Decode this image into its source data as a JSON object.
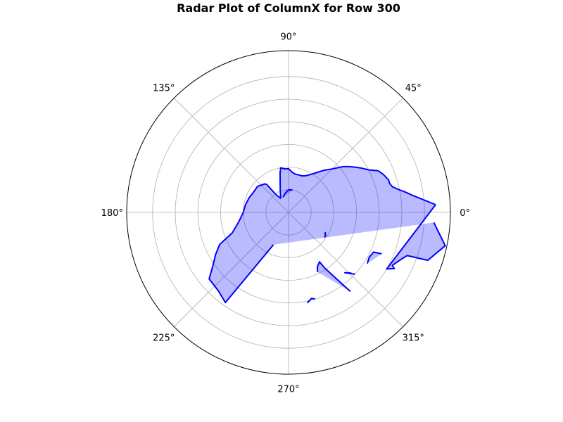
{
  "chart_data": {
    "type": "radar",
    "title": "Radar Plot of ColumnX for Row 300",
    "angle_ticks": [
      "0°",
      "45°",
      "90°",
      "135°",
      "180°",
      "225°",
      "270°",
      "315°"
    ],
    "angle_tick_degrees": [
      0,
      45,
      90,
      135,
      180,
      225,
      270,
      315
    ],
    "r_max": 1.0,
    "r_gridlines": [
      0.14,
      0.28,
      0.42,
      0.56,
      0.7,
      0.84
    ],
    "grid": true,
    "colors": {
      "line": "#0000ff",
      "fill": "#0000ff",
      "fill_opacity": 0.27,
      "grid": "#b0b0b0"
    },
    "segments": [
      {
        "filled": true,
        "points": [
          [
            3.0,
            0.91
          ],
          [
            8.0,
            0.77
          ],
          [
            10.0,
            0.73
          ],
          [
            12.0,
            0.69
          ],
          [
            14.0,
            0.66
          ],
          [
            16.0,
            0.65
          ],
          [
            18.0,
            0.65
          ],
          [
            20.0,
            0.64
          ],
          [
            22.0,
            0.63
          ],
          [
            25.0,
            0.61
          ],
          [
            28.0,
            0.56
          ],
          [
            31.0,
            0.53
          ],
          [
            34.0,
            0.5
          ],
          [
            37.0,
            0.47
          ],
          [
            40.0,
            0.44
          ],
          [
            45.0,
            0.38
          ],
          [
            50.0,
            0.34
          ],
          [
            55.0,
            0.3
          ],
          [
            60.0,
            0.27
          ],
          [
            65.0,
            0.25
          ],
          [
            70.0,
            0.24
          ],
          [
            75.0,
            0.24
          ],
          [
            80.0,
            0.24
          ],
          [
            85.0,
            0.25
          ],
          [
            90.0,
            0.27
          ],
          [
            95.0,
            0.27
          ],
          [
            100.0,
            0.28
          ],
          [
            102.0,
            0.25
          ],
          [
            110.0,
            0.15
          ],
          [
            119.0,
            0.1
          ],
          [
            125.0,
            0.13
          ],
          [
            128.0,
            0.22
          ],
          [
            130.0,
            0.23
          ],
          [
            140.0,
            0.25
          ],
          [
            150.0,
            0.25
          ],
          [
            160.0,
            0.26
          ],
          [
            170.0,
            0.27
          ],
          [
            180.0,
            0.28
          ],
          [
            190.0,
            0.31
          ],
          [
            200.0,
            0.37
          ],
          [
            205.0,
            0.47
          ],
          [
            210.0,
            0.52
          ],
          [
            215.0,
            0.57
          ],
          [
            220.0,
            0.64
          ],
          [
            228.0,
            0.65
          ],
          [
            235.0,
            0.68
          ],
          [
            245.0,
            0.22
          ]
        ],
        "closing": [
          [
            356.0,
            0.9
          ],
          [
            348.0,
            0.99
          ],
          [
            341.0,
            0.91
          ],
          [
            340.0,
            0.78
          ],
          [
            337.0,
            0.75
          ],
          [
            333.0,
            0.72
          ],
          [
            332.0,
            0.74
          ],
          [
            330.0,
            0.7
          ],
          [
            3.0,
            0.91
          ]
        ]
      },
      {
        "filled": true,
        "points": [
          [
            80.0,
            0.14
          ],
          [
            85.0,
            0.14
          ],
          [
            90.0,
            0.14
          ],
          [
            95.0,
            0.13
          ],
          [
            100.0,
            0.12
          ],
          [
            110.0,
            0.1
          ]
        ]
      },
      {
        "filled": true,
        "points": [
          [
            325.0,
            0.27
          ],
          [
            328.0,
            0.27
          ],
          [
            330.0,
            0.26
          ],
          [
            332.0,
            0.26
          ]
        ]
      },
      {
        "filled": true,
        "points": [
          [
            336.0,
            0.63
          ],
          [
            335.0,
            0.58
          ],
          [
            331.0,
            0.57
          ],
          [
            327.0,
            0.58
          ]
        ]
      },
      {
        "filled": true,
        "points": [
          [
            296.0,
            0.41
          ],
          [
            298.0,
            0.38
          ],
          [
            302.0,
            0.36
          ],
          [
            303.0,
            0.41
          ],
          [
            308.0,
            0.62
          ]
        ]
      },
      {
        "filled": true,
        "points": [
          [
            316.0,
            0.54
          ],
          [
            313.0,
            0.51
          ],
          [
            317.0,
            0.56
          ]
        ]
      },
      {
        "filled": true,
        "points": [
          [
            283.0,
            0.56
          ],
          [
            282.0,
            0.57
          ],
          [
            285.0,
            0.55
          ],
          [
            287.0,
            0.56
          ]
        ]
      }
    ]
  }
}
